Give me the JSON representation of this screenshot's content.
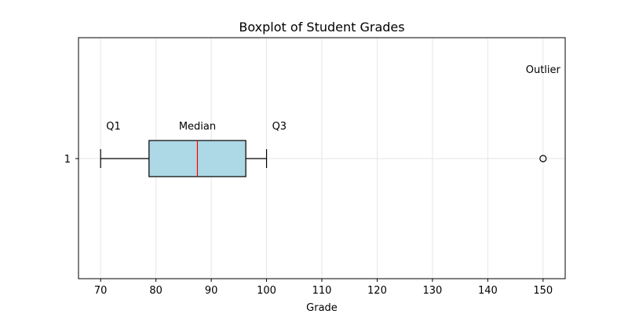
{
  "chart_data": {
    "type": "boxplot",
    "title": "Boxplot of Student Grades",
    "xlabel": "Grade",
    "ylabel": "",
    "orientation": "horizontal",
    "xlim": [
      66,
      154
    ],
    "xticks": [
      70,
      80,
      90,
      100,
      110,
      120,
      130,
      140,
      150
    ],
    "yticks": [
      "1"
    ],
    "grid": true,
    "box": {
      "whisker_low": 70,
      "q1": 78.75,
      "median": 87.5,
      "q3": 96.25,
      "whisker_high": 100,
      "outliers": [
        150
      ]
    },
    "annotations": [
      {
        "text": "Q1",
        "x": 71,
        "y": 1.14
      },
      {
        "text": "Median",
        "x": 87.5,
        "y": 1.14
      },
      {
        "text": "Q3",
        "x": 101,
        "y": 1.14
      },
      {
        "text": "Outlier",
        "x": 150,
        "y": 1.38
      }
    ],
    "colors": {
      "box_fill": "#add8e6",
      "median_line": "#ff0000",
      "grid": "#e6e6e6"
    }
  }
}
